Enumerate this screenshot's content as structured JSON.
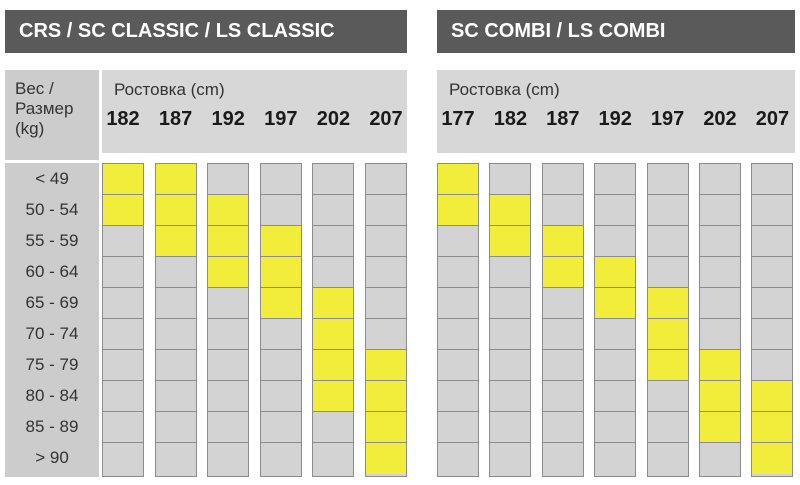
{
  "header": {
    "weight_label_line1": "Вес /",
    "weight_label_line2": "Размер",
    "weight_label_line3": "(kg)"
  },
  "weights": [
    "< 49",
    "50 - 54",
    "55 - 59",
    "60 - 64",
    "65 - 69",
    "70 - 74",
    "75 - 79",
    "80 - 84",
    "85 - 89",
    "> 90"
  ],
  "colors": {
    "title_bg": "#5a5a5a",
    "header_bg": "#d7d7d7",
    "cell_off": "#d3d3d3",
    "cell_on": "#f2ec3a",
    "border": "#8c8c8c"
  },
  "chart_data": [
    {
      "type": "table",
      "title": "CRS / SC CLASSIC / LS CLASSIC",
      "size_axis_label": "Ростовка (cm)",
      "sizes": [
        "182",
        "187",
        "192",
        "197",
        "202",
        "207"
      ],
      "weights": [
        "< 49",
        "50 - 54",
        "55 - 59",
        "60 - 64",
        "65 - 69",
        "70 - 74",
        "75 - 79",
        "80 - 84",
        "85 - 89",
        "> 90"
      ],
      "recommended": [
        [
          "< 49",
          "50 - 54"
        ],
        [
          "< 49",
          "50 - 54",
          "55 - 59"
        ],
        [
          "50 - 54",
          "55 - 59",
          "60 - 64"
        ],
        [
          "55 - 59",
          "60 - 64",
          "65 - 69"
        ],
        [
          "65 - 69",
          "70 - 74",
          "75 - 79",
          "80 - 84"
        ],
        [
          "75 - 79",
          "80 - 84",
          "85 - 89",
          "> 90"
        ]
      ]
    },
    {
      "type": "table",
      "title": "SC COMBI / LS COMBI",
      "size_axis_label": "Ростовка (cm)",
      "sizes": [
        "177",
        "182",
        "187",
        "192",
        "197",
        "202",
        "207"
      ],
      "weights": [
        "< 49",
        "50 - 54",
        "55 - 59",
        "60 - 64",
        "65 - 69",
        "70 - 74",
        "75 - 79",
        "80 - 84",
        "85 - 89",
        "> 90"
      ],
      "recommended": [
        [
          "< 49",
          "50 - 54"
        ],
        [
          "50 - 54",
          "55 - 59"
        ],
        [
          "55 - 59",
          "60 - 64"
        ],
        [
          "60 - 64",
          "65 - 69"
        ],
        [
          "65 - 69",
          "70 - 74",
          "75 - 79"
        ],
        [
          "75 - 79",
          "80 - 84",
          "85 - 89"
        ],
        [
          "80 - 84",
          "85 - 89",
          "> 90"
        ]
      ]
    }
  ]
}
